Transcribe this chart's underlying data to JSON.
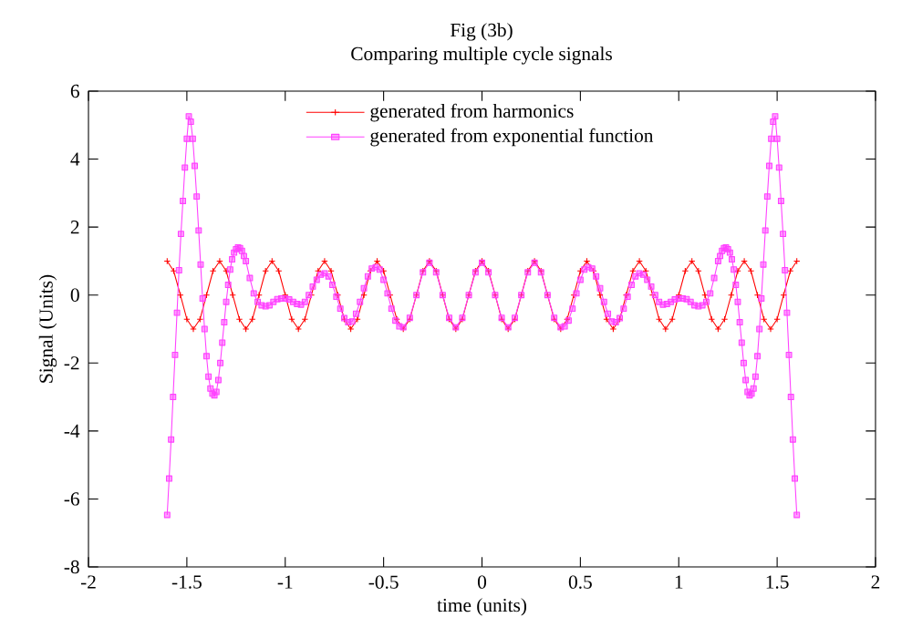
{
  "chart_data": {
    "type": "line",
    "title": "Fig (3b)",
    "subtitle": "Comparing multiple cycle signals",
    "xlabel": "time (units)",
    "ylabel": "Signal (Units)",
    "xlim": [
      -2,
      2
    ],
    "ylim": [
      -8,
      6
    ],
    "xticks": [
      -2,
      -1.5,
      -1,
      -0.5,
      0,
      0.5,
      1,
      1.5,
      2
    ],
    "yticks": [
      -8,
      -6,
      -4,
      -2,
      0,
      2,
      4,
      6
    ],
    "grid": false,
    "legend": "top",
    "series": [
      {
        "name": "generated from harmonics",
        "color": "#ff0000",
        "marker": "cross",
        "x": [
          -1.6,
          -1.567,
          -1.533,
          -1.5,
          -1.467,
          -1.433,
          -1.4,
          -1.367,
          -1.333,
          -1.3,
          -1.267,
          -1.233,
          -1.2,
          -1.167,
          -1.133,
          -1.1,
          -1.067,
          -1.033,
          -1,
          -0.967,
          -0.933,
          -0.9,
          -0.867,
          -0.833,
          -0.8,
          -0.767,
          -0.733,
          -0.7,
          -0.667,
          -0.633,
          -0.6,
          -0.567,
          -0.533,
          -0.5,
          -0.467,
          -0.433,
          -0.4,
          -0.367,
          -0.333,
          -0.3,
          -0.267,
          -0.233,
          -0.2,
          -0.167,
          -0.133,
          -0.1,
          -0.067,
          -0.033,
          0,
          0.033,
          0.067,
          0.1,
          0.133,
          0.167,
          0.2,
          0.233,
          0.267,
          0.3,
          0.333,
          0.367,
          0.4,
          0.433,
          0.467,
          0.5,
          0.533,
          0.567,
          0.6,
          0.633,
          0.667,
          0.7,
          0.733,
          0.767,
          0.8,
          0.833,
          0.867,
          0.9,
          0.933,
          0.967,
          1,
          1.033,
          1.067,
          1.1,
          1.133,
          1.167,
          1.2,
          1.233,
          1.267,
          1.3,
          1.333,
          1.367,
          1.4,
          1.433,
          1.467,
          1.5,
          1.533,
          1.567,
          1.6
        ],
        "values": [
          1,
          0.71,
          0,
          -0.71,
          -1,
          -0.71,
          0,
          0.71,
          1,
          0.71,
          0,
          -0.71,
          -1,
          -0.71,
          0,
          0.71,
          1,
          0.71,
          0,
          -0.71,
          -1,
          -0.71,
          0,
          0.71,
          1,
          0.71,
          0,
          -0.71,
          -1,
          -0.71,
          0,
          0.71,
          1,
          0.71,
          0,
          -0.71,
          -1,
          -0.71,
          0,
          0.71,
          1,
          0.71,
          0,
          -0.71,
          -1,
          -0.71,
          0,
          0.71,
          1,
          0.71,
          0,
          -0.71,
          -1,
          -0.71,
          0,
          0.71,
          1,
          0.71,
          0,
          -0.71,
          -1,
          -0.71,
          0,
          0.71,
          1,
          0.71,
          0,
          -0.71,
          -1,
          -0.71,
          0,
          0.71,
          1,
          0.71,
          0,
          -0.71,
          -1,
          -0.71,
          0,
          0.71,
          1,
          0.71,
          0,
          -0.71,
          -1,
          -0.71,
          0,
          0.71,
          1,
          0.71,
          0,
          -0.71,
          -1,
          -0.71,
          0,
          0.71,
          1
        ]
      },
      {
        "name": "generated from exponential function",
        "color": "#ff40ff",
        "marker": "square",
        "x": [
          -1.6,
          -1.59,
          -1.58,
          -1.57,
          -1.56,
          -1.55,
          -1.54,
          -1.53,
          -1.52,
          -1.51,
          -1.5,
          -1.49,
          -1.48,
          -1.47,
          -1.46,
          -1.45,
          -1.44,
          -1.43,
          -1.42,
          -1.41,
          -1.4,
          -1.39,
          -1.38,
          -1.37,
          -1.36,
          -1.35,
          -1.34,
          -1.33,
          -1.32,
          -1.31,
          -1.3,
          -1.29,
          -1.28,
          -1.27,
          -1.26,
          -1.25,
          -1.24,
          -1.23,
          -1.22,
          -1.21,
          -1.2,
          -1.18,
          -1.16,
          -1.14,
          -1.12,
          -1.1,
          -1.08,
          -1.06,
          -1.04,
          -1.02,
          -1,
          -0.98,
          -0.96,
          -0.94,
          -0.92,
          -0.9,
          -0.88,
          -0.86,
          -0.84,
          -0.82,
          -0.8,
          -0.78,
          -0.76,
          -0.74,
          -0.72,
          -0.7,
          -0.68,
          -0.66,
          -0.64,
          -0.62,
          -0.6,
          -0.58,
          -0.56,
          -0.54,
          -0.52,
          -0.5,
          -0.48,
          -0.46,
          -0.44,
          -0.42,
          -0.4,
          -0.367,
          -0.333,
          -0.3,
          -0.267,
          -0.233,
          -0.2,
          -0.167,
          -0.133,
          -0.1,
          -0.067,
          -0.033,
          0,
          0.033,
          0.067,
          0.1,
          0.133,
          0.167,
          0.2,
          0.233,
          0.267,
          0.3,
          0.333,
          0.367,
          0.4,
          0.42,
          0.44,
          0.46,
          0.48,
          0.5,
          0.52,
          0.54,
          0.56,
          0.58,
          0.6,
          0.62,
          0.64,
          0.66,
          0.68,
          0.7,
          0.72,
          0.74,
          0.76,
          0.78,
          0.8,
          0.82,
          0.84,
          0.86,
          0.88,
          0.9,
          0.92,
          0.94,
          0.96,
          0.98,
          1,
          1.02,
          1.04,
          1.06,
          1.08,
          1.1,
          1.12,
          1.14,
          1.16,
          1.18,
          1.2,
          1.21,
          1.22,
          1.23,
          1.24,
          1.25,
          1.26,
          1.27,
          1.28,
          1.29,
          1.3,
          1.31,
          1.32,
          1.33,
          1.34,
          1.35,
          1.36,
          1.37,
          1.38,
          1.39,
          1.4,
          1.41,
          1.42,
          1.43,
          1.44,
          1.45,
          1.46,
          1.47,
          1.48,
          1.49,
          1.5,
          1.51,
          1.52,
          1.53,
          1.54,
          1.55,
          1.56,
          1.57,
          1.58,
          1.59,
          1.6
        ],
        "values": [
          -6.47,
          -5.4,
          -4.25,
          -3.0,
          -1.76,
          -0.52,
          0.73,
          1.8,
          2.77,
          3.75,
          4.6,
          5.26,
          5.1,
          4.6,
          3.8,
          2.9,
          1.9,
          0.9,
          -0.1,
          -1.0,
          -1.8,
          -2.4,
          -2.75,
          -2.9,
          -2.95,
          -2.85,
          -2.5,
          -2.0,
          -1.4,
          -0.8,
          -0.2,
          0.3,
          0.75,
          1.05,
          1.25,
          1.35,
          1.4,
          1.38,
          1.3,
          1.15,
          1.0,
          0.5,
          0.05,
          -0.2,
          -0.3,
          -0.33,
          -0.3,
          -0.2,
          -0.12,
          -0.1,
          -0.1,
          -0.13,
          -0.2,
          -0.26,
          -0.28,
          -0.2,
          0,
          0.25,
          0.45,
          0.6,
          0.64,
          0.55,
          0.3,
          -0.05,
          -0.4,
          -0.68,
          -0.8,
          -0.78,
          -0.55,
          -0.2,
          0.2,
          0.55,
          0.78,
          0.82,
          0.75,
          0.45,
          0.05,
          -0.4,
          -0.75,
          -0.92,
          -0.95,
          -0.67,
          0,
          0.67,
          0.95,
          0.67,
          0,
          -0.67,
          -0.95,
          -0.67,
          0,
          0.67,
          0.95,
          0.67,
          0,
          -0.67,
          -0.95,
          -0.67,
          0,
          0.67,
          0.95,
          0.67,
          0,
          -0.67,
          -0.95,
          -0.92,
          -0.75,
          -0.4,
          0.05,
          0.45,
          0.75,
          0.82,
          0.78,
          0.55,
          0.2,
          -0.2,
          -0.55,
          -0.78,
          -0.8,
          -0.68,
          -0.4,
          -0.05,
          0.3,
          0.55,
          0.64,
          0.6,
          0.45,
          0.25,
          0,
          -0.2,
          -0.28,
          -0.26,
          -0.2,
          -0.13,
          -0.1,
          -0.1,
          -0.12,
          -0.2,
          -0.3,
          -0.33,
          -0.3,
          -0.2,
          0.05,
          0.5,
          1.0,
          1.15,
          1.3,
          1.38,
          1.4,
          1.35,
          1.25,
          1.05,
          0.75,
          0.3,
          -0.2,
          -0.8,
          -1.4,
          -2.0,
          -2.5,
          -2.85,
          -2.95,
          -2.9,
          -2.75,
          -2.4,
          -1.8,
          -1.0,
          -0.1,
          0.9,
          1.9,
          2.9,
          3.8,
          4.6,
          5.1,
          5.26,
          4.6,
          3.75,
          2.77,
          1.8,
          0.73,
          -0.52,
          -1.76,
          -3.0,
          -4.25,
          -5.4,
          -6.47
        ]
      }
    ]
  }
}
